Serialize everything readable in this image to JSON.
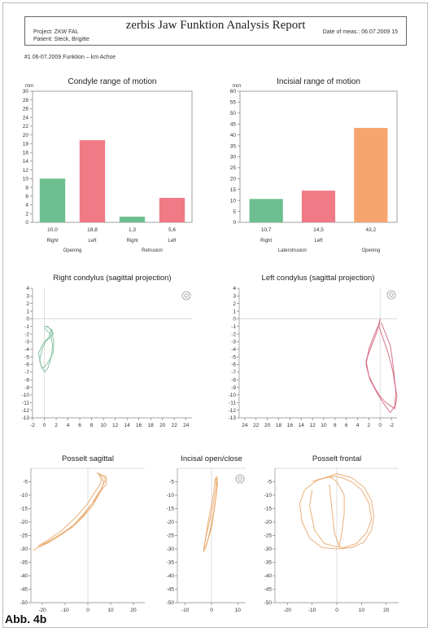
{
  "report": {
    "title": "zerbis Jaw Funktion Analysis Report",
    "project": "Project: ZKW FAL",
    "patient": "Patient: Steck, Brigitte",
    "date": "Date of meas.: 06.07.2009 15",
    "subtitle": "#1 06-07.2009 Funktion – km Achse"
  },
  "figure_label": "Abb. 4b",
  "chart_data": [
    {
      "id": "condyle",
      "type": "bar",
      "title": "Condyle range of motion",
      "unit": "mm",
      "ylim": [
        0,
        30
      ],
      "yticks": [
        0,
        2,
        4,
        6,
        8,
        10,
        12,
        14,
        16,
        18,
        20,
        22,
        24,
        26,
        28,
        30
      ],
      "categories": [
        "Right",
        "Left",
        "Right",
        "Left"
      ],
      "values": [
        10.0,
        18.8,
        1.3,
        5.6
      ],
      "value_labels": [
        "10,0",
        "18,8",
        "1,3",
        "5,6"
      ],
      "colors": [
        "#6dbf8f",
        "#f07a85",
        "#6dbf8f",
        "#f07a85"
      ],
      "groups": [
        {
          "label": "Opening",
          "span": [
            0,
            1
          ]
        },
        {
          "label": "Retrusion",
          "span": [
            2,
            3
          ]
        }
      ]
    },
    {
      "id": "incisal",
      "type": "bar",
      "title": "Incisial range of motion",
      "unit": "mm",
      "ylim": [
        0,
        60
      ],
      "yticks": [
        0,
        5,
        10,
        15,
        20,
        25,
        30,
        35,
        40,
        45,
        50,
        55,
        60
      ],
      "categories": [
        "Right",
        "Left",
        ""
      ],
      "values": [
        10.7,
        14.5,
        43.2
      ],
      "value_labels": [
        "10,7",
        "14,5",
        "43,2"
      ],
      "colors": [
        "#6dbf8f",
        "#f07a85",
        "#f7a56e"
      ],
      "groups": [
        {
          "label": "Laterotrusion",
          "span": [
            0,
            1
          ]
        },
        {
          "label": "Opening",
          "span": [
            2,
            2
          ]
        }
      ]
    },
    {
      "id": "right-condylus",
      "type": "line",
      "title": "Right condylus (sagittal projection)",
      "xlim": [
        -2,
        25
      ],
      "ylim": [
        -13,
        4
      ],
      "xticks": [
        -2,
        0,
        2,
        4,
        6,
        8,
        10,
        12,
        14,
        16,
        18,
        20,
        22,
        24
      ],
      "yticks": [
        4,
        3,
        2,
        1,
        0,
        -1,
        -2,
        -3,
        -4,
        -5,
        -6,
        -7,
        -8,
        -9,
        -10,
        -11,
        -12,
        -13
      ],
      "color": "#7fbf9c",
      "series": [
        {
          "x": [
            0,
            0.6,
            1.2,
            1.6,
            1.5,
            0.8,
            0.2,
            -0.4,
            -0.8,
            -0.4,
            0.2,
            0.9,
            1.5,
            1.3,
            0.6,
            0
          ],
          "y": [
            -1,
            -1,
            -1.6,
            -3,
            -4.5,
            -5.5,
            -6.2,
            -6.5,
            -5.5,
            -4,
            -3,
            -2.5,
            -2,
            -1.5,
            -1.1,
            -1
          ]
        },
        {
          "x": [
            0,
            1,
            1.4,
            1.2,
            0.6,
            0,
            -0.6,
            -1,
            -0.2,
            0.8,
            1.2
          ],
          "y": [
            -1.2,
            -2,
            -3.5,
            -5,
            -6.5,
            -7,
            -6,
            -4.5,
            -3.2,
            -2.4,
            -1.4
          ]
        }
      ]
    },
    {
      "id": "left-condylus",
      "type": "line",
      "title": "Left condylus (sagittal projection)",
      "xlim": [
        25,
        -3
      ],
      "ylim": [
        -13,
        4
      ],
      "xticks": [
        24,
        22,
        20,
        18,
        16,
        14,
        12,
        10,
        8,
        6,
        4,
        2,
        0,
        -2
      ],
      "yticks": [
        4,
        3,
        2,
        1,
        0,
        -1,
        -2,
        -3,
        -4,
        -5,
        -6,
        -7,
        -8,
        -9,
        -10,
        -11,
        -12,
        -13
      ],
      "color": "#d1637c",
      "series": [
        {
          "x": [
            0,
            0.2,
            -0.5,
            -1.2,
            -1.8,
            -2.3,
            -2.6,
            -3,
            -2.6,
            -1,
            0,
            1,
            2,
            2.5,
            1.5,
            0.6,
            0
          ],
          "y": [
            0,
            -1,
            -2.5,
            -4,
            -5.5,
            -7,
            -8.5,
            -10.2,
            -11.8,
            -11,
            -10.2,
            -9,
            -7.5,
            -5.5,
            -3.5,
            -1.8,
            0
          ]
        },
        {
          "x": [
            -0.2,
            -1,
            -1.8,
            -2.2,
            -2.5,
            -2.8,
            -2.6,
            -1.8,
            -0.5,
            0.5,
            1.8,
            2.5,
            2,
            1.2,
            0.4
          ],
          "y": [
            -0.5,
            -2,
            -3.5,
            -5.5,
            -7.5,
            -9.5,
            -11.5,
            -12.3,
            -11,
            -9.8,
            -8,
            -6,
            -4,
            -2.4,
            -1
          ]
        }
      ]
    },
    {
      "id": "posselt-sagittal",
      "type": "line",
      "title": "Posselt sagittal",
      "xlim": [
        -25,
        25
      ],
      "ylim": [
        -50,
        0
      ],
      "xticks": [
        -20,
        -10,
        0,
        10,
        20
      ],
      "yticks": [
        -5,
        -10,
        -15,
        -20,
        -25,
        -30,
        -35,
        -40,
        -45,
        -50
      ],
      "color": "#e9a76a",
      "series": [
        {
          "x": [
            5,
            7,
            8,
            8,
            6,
            4,
            2,
            -2,
            -7,
            -13,
            -18,
            -22,
            -24,
            -22,
            -15,
            -8,
            -2,
            2,
            4,
            6,
            7,
            8,
            8,
            6,
            5
          ],
          "y": [
            -2,
            -3,
            -4.5,
            -6,
            -8,
            -11,
            -14,
            -18,
            -22,
            -25.5,
            -28,
            -29.5,
            -30.5,
            -29.5,
            -26.5,
            -22.5,
            -17.5,
            -13,
            -10,
            -7.5,
            -5.5,
            -4,
            -3,
            -2.5,
            -2
          ]
        },
        {
          "x": [
            4,
            6,
            7,
            6,
            3,
            -1,
            -6,
            -12,
            -18,
            -22,
            -19,
            -12,
            -5,
            0,
            3,
            5,
            6,
            5,
            4
          ],
          "y": [
            -1.5,
            -3,
            -5,
            -8,
            -12,
            -16,
            -21,
            -24.5,
            -27.5,
            -29,
            -27.5,
            -23.5,
            -18,
            -13,
            -9,
            -6.5,
            -4.5,
            -2.5,
            -1.5
          ]
        }
      ]
    },
    {
      "id": "incisal-open-close",
      "type": "line",
      "title": "Incisal open/close",
      "xlim": [
        -13,
        13
      ],
      "ylim": [
        -50,
        0
      ],
      "xticks": [
        -10,
        0,
        10
      ],
      "yticks": [
        -5,
        -10,
        -15,
        -20,
        -25,
        -30,
        -35,
        -40,
        -45,
        -50
      ],
      "color": "#e9a76a",
      "series": [
        {
          "x": [
            2,
            1.5,
            0.5,
            -0.8,
            -2,
            -2.8,
            -3,
            -2.5,
            -1.5,
            0,
            1,
            1.8,
            2.3,
            2.2,
            2
          ],
          "y": [
            -3,
            -8,
            -14,
            -20,
            -25,
            -29,
            -31,
            -30,
            -27,
            -22,
            -16,
            -10,
            -6,
            -4,
            -3
          ]
        },
        {
          "x": [
            1.5,
            0.8,
            -0.3,
            -1.5,
            -2.3,
            -2.8,
            -2,
            -0.8,
            0.5,
            1.5,
            2.1,
            1.8,
            1.5
          ],
          "y": [
            -3.5,
            -9,
            -15,
            -21,
            -26,
            -30,
            -29,
            -24,
            -18,
            -12,
            -7,
            -4.5,
            -3.5
          ]
        }
      ]
    },
    {
      "id": "posselt-frontal",
      "type": "line",
      "title": "Posselt frontal",
      "xlim": [
        -25,
        25
      ],
      "ylim": [
        -50,
        0
      ],
      "xticks": [
        -20,
        -10,
        0,
        10,
        20
      ],
      "yticks": [
        -5,
        -10,
        -15,
        -20,
        -25,
        -30,
        -35,
        -40,
        -45,
        -50
      ],
      "color": "#e9a76a",
      "series": [
        {
          "x": [
            0,
            6,
            11,
            14,
            15,
            14,
            11,
            6,
            0,
            -6,
            -11,
            -14,
            -15,
            -13,
            -8,
            -3,
            0
          ],
          "y": [
            -2,
            -3.5,
            -7,
            -12,
            -18,
            -23,
            -27.5,
            -29.5,
            -30,
            -29.5,
            -26,
            -20,
            -13,
            -8,
            -4.5,
            -3,
            -2
          ]
        },
        {
          "x": [
            -3,
            0,
            3,
            3,
            2,
            1,
            -1,
            -2,
            -3
          ],
          "y": [
            -3,
            -5,
            -10,
            -17,
            -24,
            -29,
            -24,
            -15,
            -6
          ]
        },
        {
          "x": [
            -10,
            -7,
            -4,
            -1,
            2,
            6,
            10,
            13,
            14,
            12,
            8,
            3,
            -1,
            -5,
            -9,
            -11,
            -10
          ],
          "y": [
            -5,
            -4,
            -3.5,
            -3,
            -3.5,
            -5,
            -8,
            -13,
            -19,
            -24,
            -28,
            -29.5,
            -29,
            -28,
            -23,
            -14,
            -8
          ]
        }
      ]
    }
  ]
}
